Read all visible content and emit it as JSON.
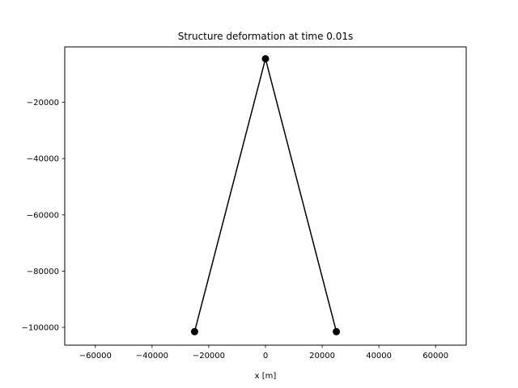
{
  "chart_data": {
    "type": "line",
    "title": "Structure deformation at time 0.01s",
    "xlabel": "x [m]",
    "ylabel": "",
    "xlim": [
      -70800,
      70800
    ],
    "ylim": [
      -106300,
      -300
    ],
    "xticks": [
      -60000,
      -40000,
      -20000,
      0,
      20000,
      40000,
      60000
    ],
    "xtick_labels": [
      "−60000",
      "−40000",
      "−20000",
      "0",
      "20000",
      "40000",
      "60000"
    ],
    "yticks": [
      -20000,
      -40000,
      -60000,
      -80000,
      -100000
    ],
    "ytick_labels": [
      "−20000",
      "−40000",
      "−60000",
      "−80000",
      "−100000"
    ],
    "grid": false,
    "series": [
      {
        "x": [
          -25000,
          0,
          25000
        ],
        "y": [
          -101500,
          -4500,
          -101500
        ],
        "color": "#000000",
        "marker": "circle"
      }
    ]
  }
}
